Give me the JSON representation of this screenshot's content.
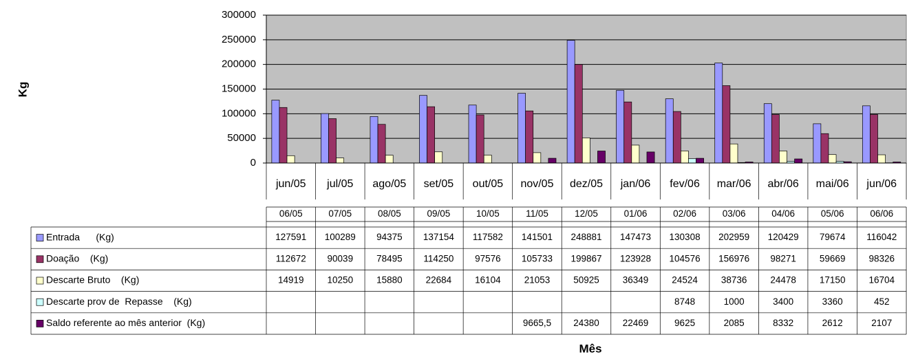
{
  "chart_data": {
    "type": "bar",
    "y_label": "Kg",
    "x_label": "Mês",
    "categories": [
      "jun/05",
      "jul/05",
      "ago/05",
      "set/05",
      "out/05",
      "nov/05",
      "dez/05",
      "jan/06",
      "fev/06",
      "mar/06",
      "abr/06",
      "mai/06",
      "jun/06"
    ],
    "table_columns": [
      "06/05",
      "07/05",
      "08/05",
      "09/05",
      "10/05",
      "11/05",
      "12/05",
      "01/06",
      "02/06",
      "03/06",
      "04/06",
      "05/06",
      "06/06"
    ],
    "series": [
      {
        "name": "Entrada      (Kg)",
        "color": "#9999ff",
        "values": [
          127591,
          100289,
          94375,
          137154,
          117582,
          141501,
          248881,
          147473,
          130308,
          202959,
          120429,
          79674,
          116042
        ]
      },
      {
        "name": "Doação    (Kg)",
        "color": "#993366",
        "values": [
          112672,
          90039,
          78495,
          114250,
          97576,
          105733,
          199867,
          123928,
          104576,
          156976,
          98271,
          59669,
          98326
        ]
      },
      {
        "name": "Descarte Bruto    (Kg)",
        "color": "#ffffcc",
        "values": [
          14919,
          10250,
          15880,
          22684,
          16104,
          21053,
          50925,
          36349,
          24524,
          38736,
          24478,
          17150,
          16704
        ]
      },
      {
        "name": "Descarte prov de  Repasse    (Kg)",
        "color": "#ccffff",
        "values": [
          null,
          null,
          null,
          null,
          null,
          null,
          null,
          null,
          8748,
          1000,
          3400,
          3360,
          452
        ]
      },
      {
        "name": "Saldo referente ao mês anterior  (Kg)",
        "color": "#660066",
        "values": [
          null,
          null,
          null,
          null,
          null,
          9665.5,
          24380,
          22469,
          9625,
          2085,
          8332,
          2612,
          2107
        ],
        "value_labels": [
          null,
          null,
          null,
          null,
          null,
          "9665,5",
          "24380",
          "22469",
          "9625",
          "2085",
          "8332",
          "2612",
          "2107"
        ]
      }
    ],
    "ylim": [
      0,
      300000
    ],
    "yticks": [
      0,
      50000,
      100000,
      150000,
      200000,
      250000,
      300000
    ],
    "grid": true,
    "plot_background": "#c0c0c0"
  }
}
